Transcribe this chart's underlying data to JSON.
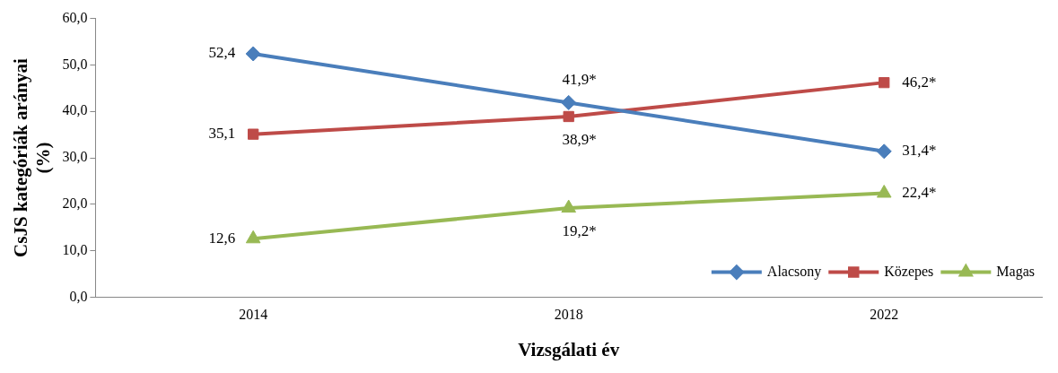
{
  "chart_data": {
    "type": "line",
    "xlabel": "Vizsgálati év",
    "ylabel": "CsJS kategóriák arányai (%)",
    "categories": [
      "2014",
      "2018",
      "2022"
    ],
    "series": [
      {
        "name": "Alacsony",
        "color": "#4a7ebb",
        "marker": "diamond",
        "values": [
          52.4,
          41.9,
          31.4
        ],
        "value_labels": [
          "52,4",
          "41,9*",
          "31,4*"
        ]
      },
      {
        "name": "Közepes",
        "color": "#be4b48",
        "marker": "square",
        "values": [
          35.1,
          38.9,
          46.2
        ],
        "value_labels": [
          "35,1",
          "38,9*",
          "46,2*"
        ]
      },
      {
        "name": "Magas",
        "color": "#98b954",
        "marker": "triangle",
        "values": [
          12.6,
          19.2,
          22.4
        ],
        "value_labels": [
          "12,6",
          "19,2*",
          "22,4*"
        ]
      }
    ],
    "ylim": [
      0,
      60
    ],
    "yticks": [
      {
        "value": 0,
        "label": "0,0"
      },
      {
        "value": 10,
        "label": "10,0"
      },
      {
        "value": 20,
        "label": "20,0"
      },
      {
        "value": 30,
        "label": "30,0"
      },
      {
        "value": 40,
        "label": "40,0"
      },
      {
        "value": 50,
        "label": "50,0"
      },
      {
        "value": 60,
        "label": "60,0"
      }
    ],
    "legend": "bottom right"
  }
}
